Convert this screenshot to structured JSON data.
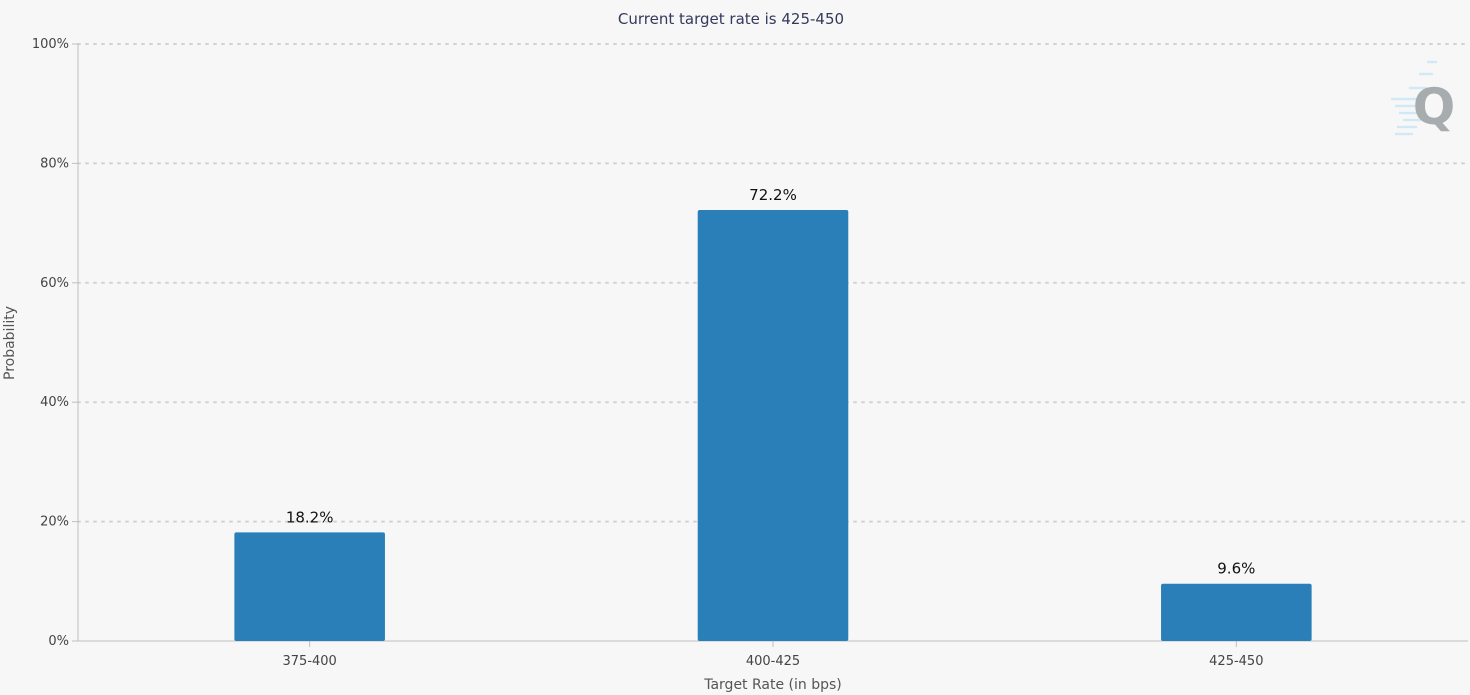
{
  "chart_data": {
    "type": "bar",
    "title": "Current target rate is 425-450",
    "xlabel": "Target Rate (in bps)",
    "ylabel": "Probability",
    "categories": [
      "375-400",
      "400-425",
      "425-450"
    ],
    "values": [
      18.2,
      72.2,
      9.6
    ],
    "value_labels": [
      "18.2%",
      "72.2%",
      "9.6%"
    ],
    "yticks": [
      "0%",
      "20%",
      "40%",
      "60%",
      "80%",
      "100%"
    ],
    "ylim": [
      0,
      100
    ],
    "grid": true,
    "legend": "none",
    "bar_color": "#2a7fb8",
    "watermark_logo": "Q"
  }
}
